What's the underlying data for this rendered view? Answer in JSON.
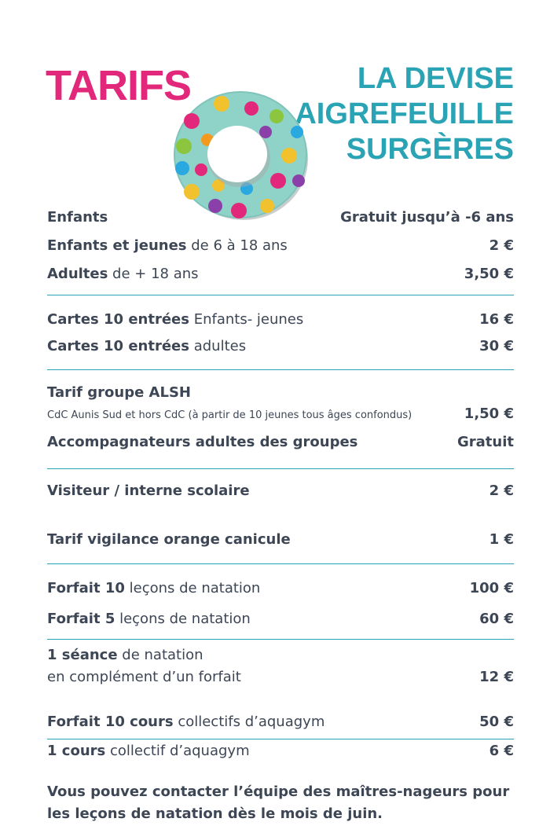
{
  "header": {
    "title": "TARIFS",
    "location_lines": [
      "LA DEVISE",
      "AIGREFEUILLE",
      "SURGÈRES"
    ]
  },
  "colors": {
    "accent_pink": "#e2287a",
    "accent_teal": "#2aa3b4",
    "text": "#3d4655",
    "ring": "#8fd2c8"
  },
  "icons": {
    "ring": "swim-ring-polka-dot-icon"
  },
  "rates": [
    {
      "bold": "Enfants",
      "light": "",
      "price": "Gratuit jusqu’à -6 ans"
    },
    {
      "bold": "Enfants et jeunes",
      "light": " de 6 à 18 ans",
      "price": "2 €"
    },
    {
      "bold": "Adultes",
      "light": " de + 18 ans",
      "price": "3,50 €"
    },
    {
      "bold": "Cartes 10 entrées",
      "light": " Enfants- jeunes",
      "price": "16 €"
    },
    {
      "bold": "Cartes 10 entrées",
      "light": " adultes",
      "price": "30 €"
    },
    {
      "bold": "Tarif groupe ALSH",
      "light": "",
      "price": ""
    },
    {
      "bold": "",
      "light": "CdC Aunis Sud et hors CdC (à partir de 10 jeunes tous âges confondus)",
      "price": "1,50 €"
    },
    {
      "bold": "Accompagnateurs adultes des groupes",
      "light": "",
      "price": "Gratuit"
    },
    {
      "bold": "Visiteur / interne scolaire",
      "light": "",
      "price": "2 €"
    },
    {
      "bold": "Tarif vigilance orange canicule",
      "light": "",
      "price": "1 €"
    },
    {
      "bold": "Forfait 10",
      "light": " leçons de natation",
      "price": "100 €"
    },
    {
      "bold": "Forfait 5",
      "light": " leçons de natation",
      "price": "60 €"
    },
    {
      "bold": "1 séance",
      "light": " de natation",
      "price": ""
    },
    {
      "bold": "",
      "light": "en complément d’un forfait",
      "price": "12 €"
    },
    {
      "bold": "Forfait 10 cours",
      "light": " collectifs d’aquagym",
      "price": "50 €"
    },
    {
      "bold": "1 cours",
      "light": " collectif d’aquagym",
      "price": "6 €"
    }
  ],
  "note": {
    "line1": "Vous pouvez contacter l’équipe des maîtres-nageurs pour",
    "line2": "les leçons de natation dès le mois de juin."
  }
}
